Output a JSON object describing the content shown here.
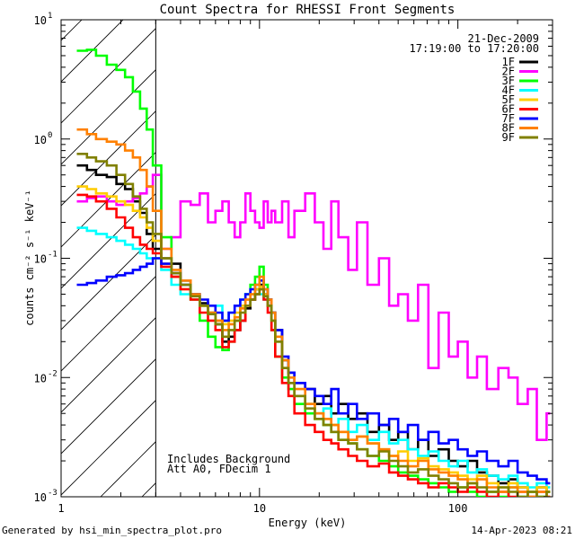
{
  "chart_data": {
    "type": "line",
    "title": "Count Spectra for RHESSI Front Segments",
    "xlabel": "Energy (keV)",
    "ylabel": "counts cm⁻² s⁻¹ keV⁻¹",
    "xscale": "log",
    "yscale": "log",
    "xlim": [
      1,
      300
    ],
    "ylim": [
      0.001,
      10
    ],
    "x_ticks": [
      {
        "value": 1,
        "label": "1"
      },
      {
        "value": 10,
        "label": "10"
      },
      {
        "value": 100,
        "label": "100"
      }
    ],
    "y_ticks": [
      {
        "value": 0.001,
        "base": "10",
        "exp": "-3"
      },
      {
        "value": 0.01,
        "base": "10",
        "exp": "-2"
      },
      {
        "value": 0.1,
        "base": "10",
        "exp": "-1"
      },
      {
        "value": 1,
        "base": "10",
        "exp": "0"
      },
      {
        "value": 10,
        "base": "10",
        "exp": "1"
      }
    ],
    "legend_header": [
      "21-Dec-2009",
      "17:19:00 to 17:20:00"
    ],
    "legend_position": "top-right",
    "hatched_region": [
      1,
      3
    ],
    "annotations": [
      "Includes Background",
      "Att A0, FDecim 1"
    ],
    "series": [
      {
        "name": "1F",
        "color": "#000000",
        "x": [
          1.2,
          1.35,
          1.5,
          1.7,
          1.9,
          2.1,
          2.3,
          2.5,
          2.7,
          2.9,
          3.2,
          3.6,
          4,
          4.5,
          5,
          5.5,
          6,
          6.5,
          7,
          7.5,
          8,
          8.5,
          9,
          9.5,
          10,
          10.5,
          11,
          11.5,
          12,
          13,
          14,
          15,
          17,
          19,
          21,
          23,
          25,
          28,
          31,
          35,
          40,
          45,
          50,
          56,
          63,
          71,
          80,
          90,
          100,
          112,
          125,
          140,
          160,
          180,
          200,
          225,
          250,
          280
        ],
        "y": [
          0.6,
          0.55,
          0.5,
          0.48,
          0.42,
          0.38,
          0.3,
          0.24,
          0.16,
          0.12,
          0.1,
          0.09,
          0.065,
          0.05,
          0.042,
          0.035,
          0.028,
          0.02,
          0.022,
          0.025,
          0.03,
          0.038,
          0.045,
          0.055,
          0.06,
          0.05,
          0.045,
          0.035,
          0.025,
          0.014,
          0.011,
          0.009,
          0.008,
          0.006,
          0.007,
          0.005,
          0.006,
          0.0045,
          0.005,
          0.0035,
          0.004,
          0.003,
          0.0035,
          0.0025,
          0.003,
          0.0022,
          0.0025,
          0.002,
          0.0018,
          0.002,
          0.0016,
          0.0015,
          0.0013,
          0.0014,
          0.0012,
          0.0011,
          0.0012,
          0.0011
        ]
      },
      {
        "name": "2F",
        "color": "#ff00ff",
        "x": [
          1.2,
          1.35,
          1.5,
          1.7,
          1.9,
          2.1,
          2.3,
          2.5,
          2.7,
          2.9,
          3.2,
          3.6,
          4,
          4.5,
          5,
          5.5,
          6,
          6.5,
          7,
          7.5,
          8,
          8.5,
          9,
          9.5,
          10,
          10.5,
          11,
          11.5,
          12,
          13,
          14,
          15,
          17,
          19,
          21,
          23,
          25,
          28,
          31,
          35,
          40,
          45,
          50,
          56,
          63,
          71,
          80,
          90,
          100,
          112,
          125,
          140,
          160,
          180,
          200,
          225,
          250,
          280
        ],
        "y": [
          0.3,
          0.32,
          0.33,
          0.3,
          0.28,
          0.3,
          0.32,
          0.35,
          0.4,
          0.5,
          0.12,
          0.15,
          0.3,
          0.28,
          0.35,
          0.2,
          0.25,
          0.3,
          0.2,
          0.15,
          0.2,
          0.35,
          0.25,
          0.2,
          0.18,
          0.3,
          0.2,
          0.25,
          0.2,
          0.3,
          0.15,
          0.25,
          0.35,
          0.2,
          0.12,
          0.3,
          0.15,
          0.08,
          0.2,
          0.06,
          0.1,
          0.04,
          0.05,
          0.03,
          0.06,
          0.012,
          0.035,
          0.015,
          0.02,
          0.01,
          0.015,
          0.008,
          0.012,
          0.01,
          0.006,
          0.008,
          0.003,
          0.005
        ]
      },
      {
        "name": "3F",
        "color": "#00ff00",
        "x": [
          1.2,
          1.35,
          1.5,
          1.7,
          1.9,
          2.1,
          2.3,
          2.5,
          2.7,
          2.9,
          3.2,
          3.6,
          4,
          4.5,
          5,
          5.5,
          6,
          6.5,
          7,
          7.5,
          8,
          8.5,
          9,
          9.5,
          10,
          10.5,
          11,
          11.5,
          12,
          13,
          14,
          15,
          17,
          19,
          21,
          23,
          25,
          28,
          31,
          35,
          40,
          45,
          50,
          56,
          63,
          71,
          80,
          90,
          100,
          112,
          125,
          140,
          160,
          180,
          200,
          225,
          250,
          280
        ],
        "y": [
          5.5,
          5.6,
          5,
          4.2,
          3.8,
          3.3,
          2.5,
          1.8,
          1.2,
          0.6,
          0.15,
          0.07,
          0.06,
          0.045,
          0.03,
          0.022,
          0.018,
          0.017,
          0.02,
          0.03,
          0.04,
          0.05,
          0.06,
          0.07,
          0.085,
          0.06,
          0.04,
          0.025,
          0.015,
          0.01,
          0.008,
          0.006,
          0.005,
          0.0045,
          0.004,
          0.0035,
          0.003,
          0.0028,
          0.0025,
          0.0022,
          0.002,
          0.0018,
          0.0016,
          0.0015,
          0.0014,
          0.0013,
          0.0012,
          0.0011,
          0.0012,
          0.0011,
          0.001,
          0.0011,
          0.001,
          0.0012,
          0.001,
          0.0011,
          0.001,
          0.0011
        ]
      },
      {
        "name": "4F",
        "color": "#00ffff",
        "x": [
          1.2,
          1.35,
          1.5,
          1.7,
          1.9,
          2.1,
          2.3,
          2.5,
          2.7,
          2.9,
          3.2,
          3.6,
          4,
          4.5,
          5,
          5.5,
          6,
          6.5,
          7,
          7.5,
          8,
          8.5,
          9,
          9.5,
          10,
          10.5,
          11,
          11.5,
          12,
          13,
          14,
          15,
          17,
          19,
          21,
          23,
          25,
          28,
          31,
          35,
          40,
          45,
          50,
          56,
          63,
          71,
          80,
          90,
          100,
          112,
          125,
          140,
          160,
          180,
          200,
          225,
          250,
          280
        ],
        "y": [
          0.18,
          0.17,
          0.16,
          0.15,
          0.14,
          0.13,
          0.12,
          0.11,
          0.1,
          0.1,
          0.08,
          0.06,
          0.05,
          0.045,
          0.04,
          0.035,
          0.04,
          0.03,
          0.035,
          0.04,
          0.045,
          0.05,
          0.055,
          0.05,
          0.05,
          0.045,
          0.04,
          0.03,
          0.02,
          0.012,
          0.009,
          0.007,
          0.006,
          0.005,
          0.0055,
          0.004,
          0.0045,
          0.0035,
          0.004,
          0.003,
          0.0035,
          0.0028,
          0.003,
          0.0025,
          0.0022,
          0.0024,
          0.002,
          0.0018,
          0.002,
          0.0016,
          0.0017,
          0.0015,
          0.0014,
          0.0015,
          0.0013,
          0.0012,
          0.0013,
          0.0012
        ]
      },
      {
        "name": "5F",
        "color": "#ffcc00",
        "x": [
          1.2,
          1.35,
          1.5,
          1.7,
          1.9,
          2.1,
          2.3,
          2.5,
          2.7,
          2.9,
          3.2,
          3.6,
          4,
          4.5,
          5,
          5.5,
          6,
          6.5,
          7,
          7.5,
          8,
          8.5,
          9,
          9.5,
          10,
          10.5,
          11,
          11.5,
          12,
          13,
          14,
          15,
          17,
          19,
          21,
          23,
          25,
          28,
          31,
          35,
          40,
          45,
          50,
          56,
          63,
          71,
          80,
          90,
          100,
          112,
          125,
          140,
          160,
          180,
          200,
          225,
          250,
          280
        ],
        "y": [
          0.4,
          0.38,
          0.35,
          0.33,
          0.3,
          0.28,
          0.25,
          0.22,
          0.18,
          0.14,
          0.09,
          0.07,
          0.055,
          0.045,
          0.04,
          0.035,
          0.03,
          0.028,
          0.03,
          0.035,
          0.04,
          0.045,
          0.05,
          0.055,
          0.058,
          0.05,
          0.04,
          0.03,
          0.02,
          0.012,
          0.009,
          0.007,
          0.006,
          0.005,
          0.0045,
          0.004,
          0.0035,
          0.003,
          0.0032,
          0.0028,
          0.0025,
          0.0022,
          0.0024,
          0.002,
          0.0021,
          0.0018,
          0.0017,
          0.0016,
          0.0015,
          0.0014,
          0.0015,
          0.0013,
          0.0012,
          0.0013,
          0.0012,
          0.0011,
          0.0012,
          0.0011
        ]
      },
      {
        "name": "6F",
        "color": "#ff0000",
        "x": [
          1.2,
          1.35,
          1.5,
          1.7,
          1.9,
          2.1,
          2.3,
          2.5,
          2.7,
          2.9,
          3.2,
          3.6,
          4,
          4.5,
          5,
          5.5,
          6,
          6.5,
          7,
          7.5,
          8,
          8.5,
          9,
          9.5,
          10,
          10.5,
          11,
          11.5,
          12,
          13,
          14,
          15,
          17,
          19,
          21,
          23,
          25,
          28,
          31,
          35,
          40,
          45,
          50,
          56,
          63,
          71,
          80,
          90,
          100,
          112,
          125,
          140,
          160,
          180,
          200,
          225,
          250,
          280
        ],
        "y": [
          0.34,
          0.33,
          0.3,
          0.26,
          0.22,
          0.18,
          0.15,
          0.13,
          0.12,
          0.11,
          0.085,
          0.07,
          0.055,
          0.045,
          0.035,
          0.03,
          0.025,
          0.018,
          0.02,
          0.025,
          0.03,
          0.04,
          0.045,
          0.05,
          0.055,
          0.045,
          0.035,
          0.025,
          0.015,
          0.009,
          0.007,
          0.005,
          0.004,
          0.0035,
          0.003,
          0.0028,
          0.0025,
          0.0022,
          0.002,
          0.0018,
          0.0019,
          0.0016,
          0.0015,
          0.0014,
          0.0013,
          0.0012,
          0.0013,
          0.0012,
          0.0011,
          0.0012,
          0.0011,
          0.001,
          0.0011,
          0.001,
          0.0011,
          0.001,
          0.0011,
          0.001
        ]
      },
      {
        "name": "7F",
        "color": "#0000ff",
        "x": [
          1.2,
          1.35,
          1.5,
          1.7,
          1.9,
          2.1,
          2.3,
          2.5,
          2.7,
          2.9,
          3.2,
          3.6,
          4,
          4.5,
          5,
          5.5,
          6,
          6.5,
          7,
          7.5,
          8,
          8.5,
          9,
          9.5,
          10,
          10.5,
          11,
          11.5,
          12,
          13,
          14,
          15,
          17,
          19,
          21,
          23,
          25,
          28,
          31,
          35,
          40,
          45,
          50,
          56,
          63,
          71,
          80,
          90,
          100,
          112,
          125,
          140,
          160,
          180,
          200,
          225,
          250,
          280
        ],
        "y": [
          0.06,
          0.062,
          0.065,
          0.07,
          0.072,
          0.075,
          0.08,
          0.085,
          0.09,
          0.1,
          0.09,
          0.075,
          0.06,
          0.05,
          0.045,
          0.04,
          0.035,
          0.03,
          0.035,
          0.04,
          0.045,
          0.05,
          0.055,
          0.06,
          0.065,
          0.055,
          0.045,
          0.035,
          0.025,
          0.015,
          0.011,
          0.009,
          0.008,
          0.007,
          0.006,
          0.008,
          0.005,
          0.006,
          0.0045,
          0.005,
          0.004,
          0.0045,
          0.0035,
          0.004,
          0.003,
          0.0035,
          0.0028,
          0.003,
          0.0025,
          0.0022,
          0.0024,
          0.002,
          0.0018,
          0.002,
          0.0016,
          0.0015,
          0.0014,
          0.0013
        ]
      },
      {
        "name": "8F",
        "color": "#ff8000",
        "x": [
          1.2,
          1.35,
          1.5,
          1.7,
          1.9,
          2.1,
          2.3,
          2.5,
          2.7,
          2.9,
          3.2,
          3.6,
          4,
          4.5,
          5,
          5.5,
          6,
          6.5,
          7,
          7.5,
          8,
          8.5,
          9,
          9.5,
          10,
          10.5,
          11,
          11.5,
          12,
          13,
          14,
          15,
          17,
          19,
          21,
          23,
          25,
          28,
          31,
          35,
          40,
          45,
          50,
          56,
          63,
          71,
          80,
          90,
          100,
          112,
          125,
          140,
          160,
          180,
          200,
          225,
          250,
          280
        ],
        "y": [
          1.2,
          1.1,
          1,
          0.95,
          0.9,
          0.8,
          0.7,
          0.55,
          0.4,
          0.25,
          0.12,
          0.08,
          0.065,
          0.05,
          0.04,
          0.035,
          0.03,
          0.025,
          0.028,
          0.032,
          0.038,
          0.045,
          0.05,
          0.06,
          0.07,
          0.055,
          0.045,
          0.035,
          0.022,
          0.014,
          0.01,
          0.008,
          0.006,
          0.005,
          0.0045,
          0.004,
          0.0035,
          0.003,
          0.0032,
          0.0028,
          0.0025,
          0.0022,
          0.002,
          0.0018,
          0.002,
          0.0017,
          0.0016,
          0.0015,
          0.0014,
          0.0013,
          0.0014,
          0.0012,
          0.0011,
          0.0012,
          0.0011,
          0.001,
          0.0011,
          0.001
        ]
      },
      {
        "name": "9F",
        "color": "#808000",
        "x": [
          1.2,
          1.35,
          1.5,
          1.7,
          1.9,
          2.1,
          2.3,
          2.5,
          2.7,
          2.9,
          3.2,
          3.6,
          4,
          4.5,
          5,
          5.5,
          6,
          6.5,
          7,
          7.5,
          8,
          8.5,
          9,
          9.5,
          10,
          10.5,
          11,
          11.5,
          12,
          13,
          14,
          15,
          17,
          19,
          21,
          23,
          25,
          28,
          31,
          35,
          40,
          45,
          50,
          56,
          63,
          71,
          80,
          90,
          100,
          112,
          125,
          140,
          160,
          180,
          200,
          225,
          250,
          280
        ],
        "y": [
          0.75,
          0.7,
          0.65,
          0.6,
          0.5,
          0.42,
          0.33,
          0.26,
          0.2,
          0.16,
          0.1,
          0.075,
          0.06,
          0.048,
          0.04,
          0.034,
          0.028,
          0.022,
          0.025,
          0.03,
          0.035,
          0.04,
          0.045,
          0.05,
          0.055,
          0.048,
          0.04,
          0.03,
          0.02,
          0.012,
          0.009,
          0.007,
          0.0055,
          0.0045,
          0.004,
          0.0035,
          0.003,
          0.0028,
          0.0025,
          0.0022,
          0.0024,
          0.002,
          0.0018,
          0.0016,
          0.0017,
          0.0015,
          0.0014,
          0.0013,
          0.0012,
          0.0013,
          0.0012,
          0.0011,
          0.0012,
          0.0011,
          0.001,
          0.0011,
          0.001,
          0.0011
        ]
      }
    ]
  },
  "footer": {
    "generated_by": "Generated by hsi_min_spectra_plot.pro",
    "date": "14-Apr-2023 08:21"
  }
}
